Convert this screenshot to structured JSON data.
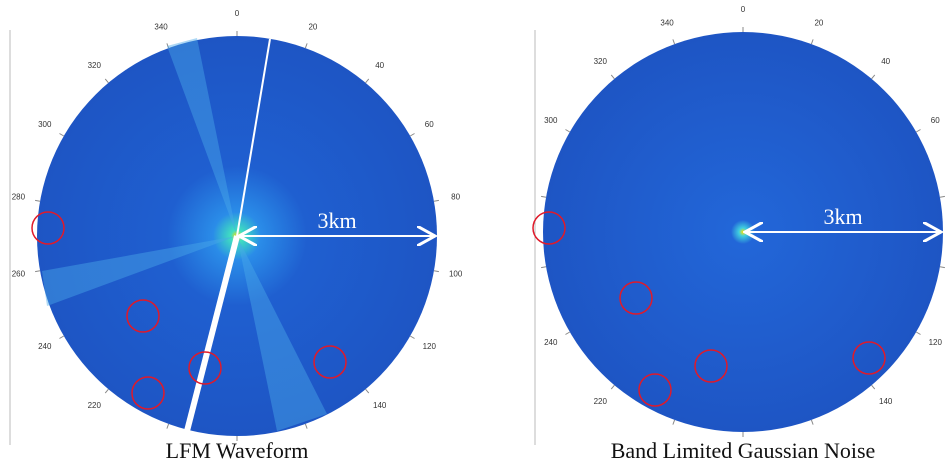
{
  "panels": [
    {
      "caption": "LFM Waveform",
      "range_label": "3km",
      "azimuth_labels": [
        0,
        20,
        40,
        60,
        80,
        100,
        120,
        140,
        220,
        240,
        260,
        280,
        300,
        320,
        340
      ]
    },
    {
      "caption": "Band Limited Gaussian Noise",
      "range_label": "3km",
      "azimuth_labels": [
        0,
        20,
        40,
        60,
        120,
        140,
        220,
        240,
        300,
        320,
        340
      ]
    }
  ]
}
